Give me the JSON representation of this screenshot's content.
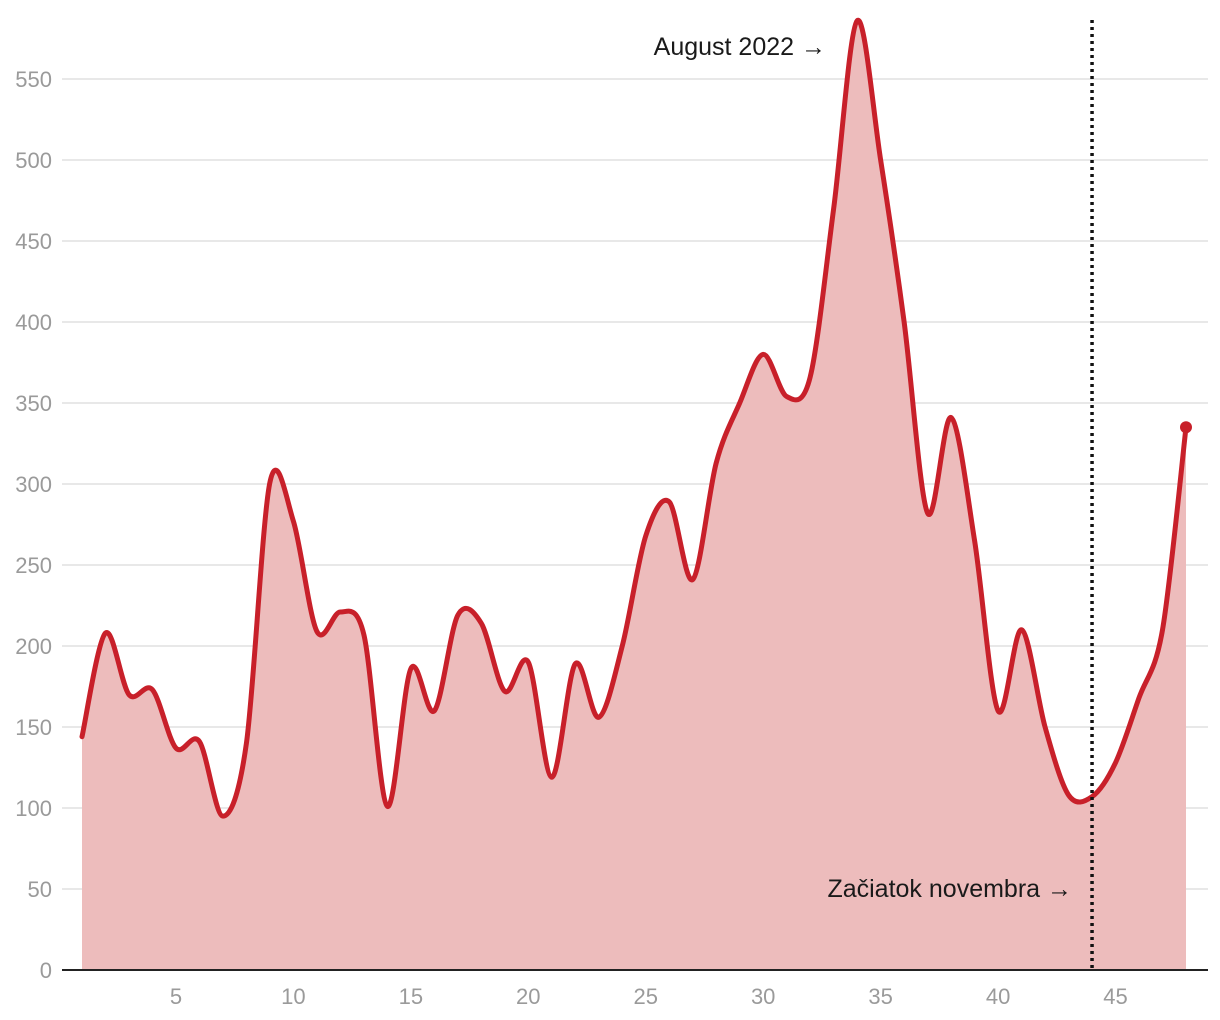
{
  "chart_data": {
    "type": "area",
    "title": "",
    "xlabel": "",
    "ylabel": "",
    "xlim": [
      0,
      49
    ],
    "ylim": [
      0,
      590
    ],
    "grid": true,
    "x_ticks": [
      5,
      10,
      15,
      20,
      25,
      30,
      35,
      40,
      45
    ],
    "y_ticks": [
      0,
      50,
      100,
      150,
      200,
      250,
      300,
      350,
      400,
      450,
      500,
      550
    ],
    "series": [
      {
        "name": "",
        "color": "#c8202a",
        "fill": "#edbcbc",
        "x": [
          1,
          2,
          3,
          4,
          5,
          6,
          7,
          8,
          9,
          10,
          11,
          12,
          13,
          14,
          15,
          16,
          17,
          18,
          19,
          20,
          21,
          22,
          23,
          24,
          25,
          26,
          27,
          28,
          29,
          30,
          31,
          32,
          33,
          34,
          35,
          36,
          37,
          38,
          39,
          40,
          41,
          42,
          43,
          44,
          45,
          46,
          47,
          48
        ],
        "values": [
          144,
          208,
          170,
          173,
          137,
          141,
          95,
          140,
          301,
          277,
          209,
          221,
          207,
          101,
          186,
          160,
          219,
          214,
          172,
          190,
          119,
          189,
          156,
          200,
          268,
          289,
          241,
          313,
          350,
          380,
          354,
          366,
          470,
          586,
          500,
          400,
          282,
          341,
          265,
          160,
          210,
          150,
          108,
          107,
          128,
          168,
          210,
          335
        ]
      }
    ],
    "annotations": [
      {
        "label": "August 2022",
        "arrow": "→",
        "x": 34,
        "value": 586
      },
      {
        "label": "Začiatok novembra",
        "arrow": "→",
        "x": 44,
        "value": 50
      }
    ],
    "reference_line": {
      "x": 44,
      "style": "dotted"
    }
  }
}
